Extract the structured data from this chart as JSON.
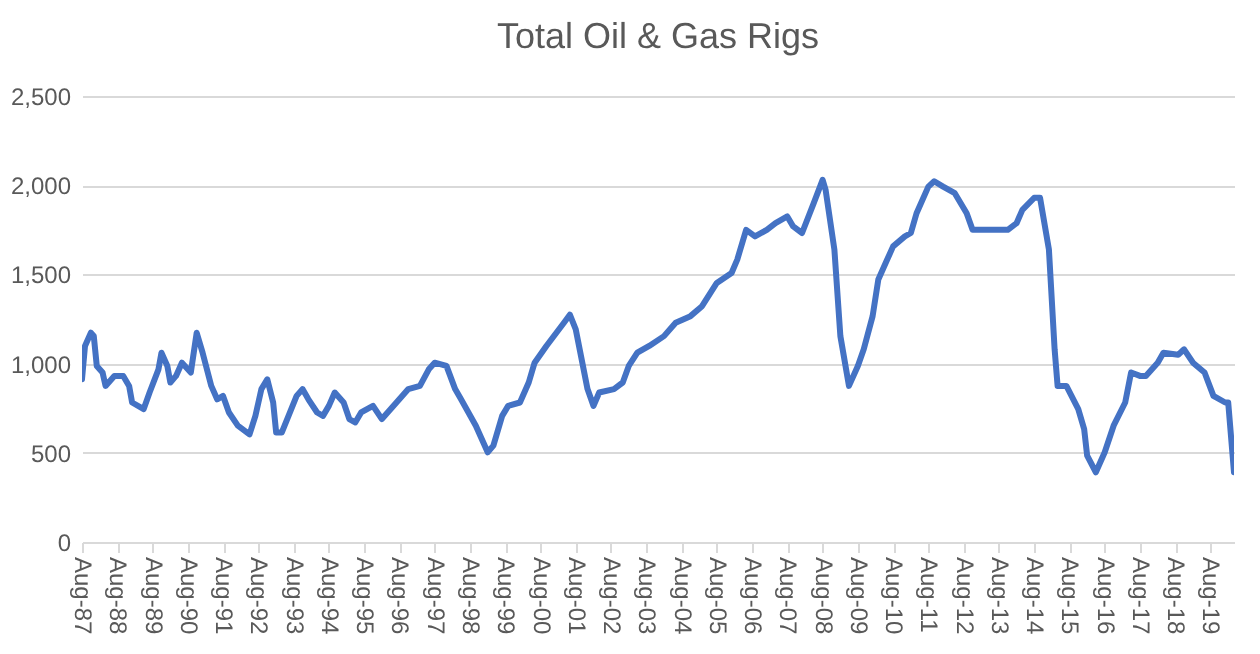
{
  "chart_data": {
    "type": "line",
    "title": "Total Oil & Gas Rigs",
    "x": [
      "1987-08",
      "1987-09",
      "1987-11",
      "1987-12",
      "1988-01",
      "1988-03",
      "1988-04",
      "1988-07",
      "1988-10",
      "1988-12",
      "1989-01",
      "1989-05",
      "1989-07",
      "1989-10",
      "1989-11",
      "1990-01",
      "1990-02",
      "1990-04",
      "1990-06",
      "1990-09",
      "1990-11",
      "1991-01",
      "1991-04",
      "1991-06",
      "1991-08",
      "1991-10",
      "1992-01",
      "1992-05",
      "1992-07",
      "1992-09",
      "1992-11",
      "1993-01",
      "1993-02",
      "1993-04",
      "1993-09",
      "1993-11",
      "1994-01",
      "1994-04",
      "1994-06",
      "1994-08",
      "1994-10",
      "1995-01",
      "1995-03",
      "1995-05",
      "1995-07",
      "1995-11",
      "1996-02",
      "1996-07",
      "1996-11",
      "1997-03",
      "1997-06",
      "1997-08",
      "1997-12",
      "1998-03",
      "1998-05",
      "1998-10",
      "1999-02",
      "1999-04",
      "1999-07",
      "1999-09",
      "2000-01",
      "2000-04",
      "2000-06",
      "2000-10",
      "2001-04",
      "2001-06",
      "2001-08",
      "2001-12",
      "2002-02",
      "2002-04",
      "2002-09",
      "2002-12",
      "2003-02",
      "2003-05",
      "2003-09",
      "2004-02",
      "2004-06",
      "2004-11",
      "2005-03",
      "2005-08",
      "2006-01",
      "2006-03",
      "2006-06",
      "2006-09",
      "2007-01",
      "2007-04",
      "2007-08",
      "2007-10",
      "2008-01",
      "2008-05",
      "2008-08",
      "2008-09",
      "2008-12",
      "2009-02",
      "2009-05",
      "2009-08",
      "2009-10",
      "2010-01",
      "2010-03",
      "2010-06",
      "2010-08",
      "2010-12",
      "2011-02",
      "2011-04",
      "2011-08",
      "2011-10",
      "2012-01",
      "2012-05",
      "2012-09",
      "2012-11",
      "2013-05",
      "2013-11",
      "2014-02",
      "2014-04",
      "2014-08",
      "2014-10",
      "2015-01",
      "2015-03",
      "2015-04",
      "2015-07",
      "2015-11",
      "2016-01",
      "2016-02",
      "2016-05",
      "2016-08",
      "2016-11",
      "2017-03",
      "2017-05",
      "2017-08",
      "2017-10",
      "2018-02",
      "2018-04",
      "2018-09",
      "2018-11",
      "2019-02",
      "2019-06",
      "2019-09",
      "2020-01",
      "2020-02",
      "2020-04"
    ],
    "series": [
      {
        "color": "#4472c4",
        "values": [
          912,
          1099,
          1173,
          1155,
          987,
          950,
          875,
          931,
          931,
          875,
          782,
          745,
          838,
          968,
          1061,
          987,
          894,
          931,
          1005,
          950,
          1173,
          1061,
          875,
          800,
          819,
          726,
          652,
          603,
          707,
          857,
          912,
          782,
          614,
          614,
          819,
          857,
          800,
          726,
          707,
          763,
          838,
          782,
          689,
          670,
          726,
          763,
          689,
          782,
          857,
          875,
          968,
          1005,
          987,
          857,
          800,
          652,
          503,
          540,
          707,
          763,
          782,
          894,
          1005,
          1099,
          1229,
          1274,
          1192,
          857,
          763,
          838,
          857,
          894,
          987,
          1061,
          1099,
          1154,
          1229,
          1266,
          1322,
          1452,
          1508,
          1583,
          1750,
          1713,
          1750,
          1788,
          1825,
          1769,
          1732,
          1899,
          2030,
          1974,
          1639,
          1154,
          875,
          987,
          1080,
          1266,
          1471,
          1583,
          1657,
          1713,
          1732,
          1843,
          1992,
          2022,
          1992,
          1955,
          1843,
          1750,
          1750,
          1750,
          1788,
          1862,
          1929,
          1929,
          1639,
          1080,
          875,
          875,
          745,
          633,
          484,
          391,
          503,
          652,
          782,
          950,
          931,
          931,
          1005,
          1061,
          1050,
          1080,
          1005,
          950,
          819,
          782,
          782,
          391
        ]
      }
    ],
    "xlim": [
      "1987-08",
      "2020-04"
    ],
    "xticks": [
      {
        "value": "1987-08",
        "label": "Aug-87"
      },
      {
        "value": "1988-08",
        "label": "Aug-88"
      },
      {
        "value": "1989-08",
        "label": "Aug-89"
      },
      {
        "value": "1990-08",
        "label": "Aug-90"
      },
      {
        "value": "1991-08",
        "label": "Aug-91"
      },
      {
        "value": "1992-08",
        "label": "Aug-92"
      },
      {
        "value": "1993-08",
        "label": "Aug-93"
      },
      {
        "value": "1994-08",
        "label": "Aug-94"
      },
      {
        "value": "1995-08",
        "label": "Aug-95"
      },
      {
        "value": "1996-08",
        "label": "Aug-96"
      },
      {
        "value": "1997-08",
        "label": "Aug-97"
      },
      {
        "value": "1998-08",
        "label": "Aug-98"
      },
      {
        "value": "1999-08",
        "label": "Aug-99"
      },
      {
        "value": "2000-08",
        "label": "Aug-00"
      },
      {
        "value": "2001-08",
        "label": "Aug-01"
      },
      {
        "value": "2002-08",
        "label": "Aug-02"
      },
      {
        "value": "2003-08",
        "label": "Aug-03"
      },
      {
        "value": "2004-08",
        "label": "Aug-04"
      },
      {
        "value": "2005-08",
        "label": "Aug-05"
      },
      {
        "value": "2006-08",
        "label": "Aug-06"
      },
      {
        "value": "2007-08",
        "label": "Aug-07"
      },
      {
        "value": "2008-08",
        "label": "Aug-08"
      },
      {
        "value": "2009-08",
        "label": "Aug-09"
      },
      {
        "value": "2010-08",
        "label": "Aug-10"
      },
      {
        "value": "2011-08",
        "label": "Aug-11"
      },
      {
        "value": "2012-08",
        "label": "Aug-12"
      },
      {
        "value": "2013-08",
        "label": "Aug-13"
      },
      {
        "value": "2014-08",
        "label": "Aug-14"
      },
      {
        "value": "2015-08",
        "label": "Aug-15"
      },
      {
        "value": "2016-08",
        "label": "Aug-16"
      },
      {
        "value": "2017-08",
        "label": "Aug-17"
      },
      {
        "value": "2018-08",
        "label": "Aug-18"
      },
      {
        "value": "2019-08",
        "label": "Aug-19"
      }
    ],
    "ylim": [
      0,
      2500
    ],
    "yticks": [
      0,
      {
        "value": 500,
        "label": "500"
      },
      {
        "value": 1000,
        "label": "1,000"
      },
      {
        "value": 1500,
        "label": "1,500"
      },
      {
        "value": 2000,
        "label": "2,000"
      },
      {
        "value": 2500,
        "label": "2,500"
      }
    ],
    "grid": "y",
    "marker": "none",
    "line_style": "solid"
  }
}
